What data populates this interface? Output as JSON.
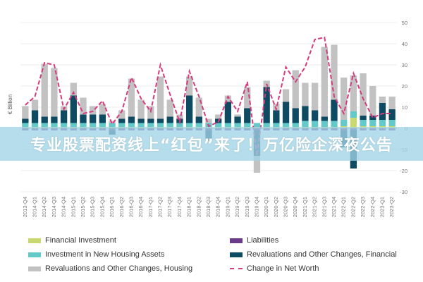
{
  "chart_data": {
    "type": "bar",
    "ylabel": "€ Billion",
    "ylim": [
      -30,
      50
    ],
    "yticks": [
      -30,
      -20,
      -10,
      0,
      10,
      20,
      30,
      40,
      50
    ],
    "grid": true,
    "legend_position": "bottom",
    "categories": [
      "2013-Q4",
      "2014-Q1",
      "2014-Q2",
      "2014-Q3",
      "2014-Q4",
      "2015-Q1",
      "2015-Q2",
      "2015-Q3",
      "2015-Q4",
      "2016-Q1",
      "2016-Q2",
      "2016-Q3",
      "2016-Q4",
      "2017-Q1",
      "2017-Q2",
      "2017-Q3",
      "2017-Q4",
      "2018-Q1",
      "2018-Q2",
      "2018-Q3",
      "2018-Q4",
      "2019-Q1",
      "2019-Q2",
      "2019-Q3",
      "2019-Q4",
      "2020-Q1",
      "2020-Q2",
      "2020-Q3",
      "2020-Q4",
      "2021-Q1",
      "2021-Q2",
      "2021-Q3",
      "2021-Q4",
      "2022-Q1",
      "2022-Q2",
      "2022-Q3",
      "2022-Q4",
      "2023-Q1",
      "2023-Q2"
    ],
    "series": [
      {
        "name": "Financial Investment",
        "color": "#c8d96f",
        "type": "bar",
        "values": [
          0.5,
          0.5,
          0.5,
          0.5,
          0.5,
          0.5,
          0.5,
          0.5,
          0.5,
          0.5,
          0.5,
          0.5,
          0.5,
          0.5,
          0.5,
          0.5,
          0.5,
          0.5,
          0.5,
          0.5,
          0.5,
          0.5,
          0.5,
          0.5,
          0.5,
          0.5,
          0.5,
          0.5,
          0.5,
          0.5,
          0.5,
          0.5,
          0.5,
          1.0,
          5.0,
          1.0,
          1.0,
          1.0,
          1.0
        ]
      },
      {
        "name": "Liabilities",
        "color": "#6b3a8a",
        "type": "bar",
        "values": [
          -1,
          -1,
          -1,
          -1,
          -1,
          -1,
          -1,
          -1,
          -1,
          -1,
          -1,
          -1,
          -1,
          -1,
          -1,
          -1,
          -1,
          -1,
          -1,
          -1,
          -1,
          -1,
          -1,
          -1,
          -1,
          -1,
          -1,
          -1,
          -1,
          -1,
          -1,
          -1,
          -1,
          -1,
          -1,
          -1,
          -1,
          -1,
          -1
        ]
      },
      {
        "name": "Investment in New Housing Assets",
        "color": "#63c9c9",
        "type": "bar",
        "values": [
          2,
          2,
          2,
          2,
          2,
          2,
          2,
          2,
          2,
          2,
          2,
          2,
          2,
          2,
          2,
          2,
          2,
          2,
          2,
          2,
          2,
          2,
          2,
          2,
          2,
          2,
          2,
          2,
          2,
          3,
          3,
          3,
          3,
          3,
          3,
          3,
          3,
          3,
          3
        ]
      },
      {
        "name": "Revaluations and Other Changes, Financial",
        "color": "#0f4a63",
        "type": "bar",
        "values": [
          2,
          6,
          3,
          3,
          6,
          13,
          4,
          4,
          4,
          -2,
          2,
          3,
          2,
          2,
          2,
          3,
          2,
          13,
          3,
          -5,
          2,
          10,
          3,
          7,
          -12,
          17,
          6,
          10,
          7,
          7,
          5,
          2,
          10,
          -8,
          -18,
          2,
          2,
          8,
          5
        ]
      },
      {
        "name": "Revaluations and Other Changes, Housing",
        "color": "#c2c2c2",
        "type": "bar",
        "values": [
          6,
          5,
          25,
          23,
          2,
          6,
          8,
          4,
          5,
          1,
          4,
          18,
          9,
          6,
          20,
          8,
          2,
          9,
          9,
          2,
          2,
          3,
          1,
          10,
          -8,
          3,
          3,
          6,
          18,
          11,
          13,
          33,
          26,
          20,
          17,
          20,
          14,
          3,
          6
        ]
      },
      {
        "name": "Change in Net Worth",
        "color": "#d63a7f",
        "type": "line",
        "values": [
          11,
          15,
          31,
          30,
          9,
          17,
          7,
          8,
          13,
          2,
          8,
          24,
          14,
          8,
          30,
          16,
          3,
          27,
          15,
          1,
          3,
          15,
          8,
          22,
          -13,
          21,
          9,
          29,
          22,
          29,
          42,
          43,
          15,
          7,
          26,
          14,
          5,
          7,
          7
        ]
      }
    ]
  },
  "banner": {
    "text": "专业股票配资线上“红包”来了！万亿险企深夜公告"
  }
}
